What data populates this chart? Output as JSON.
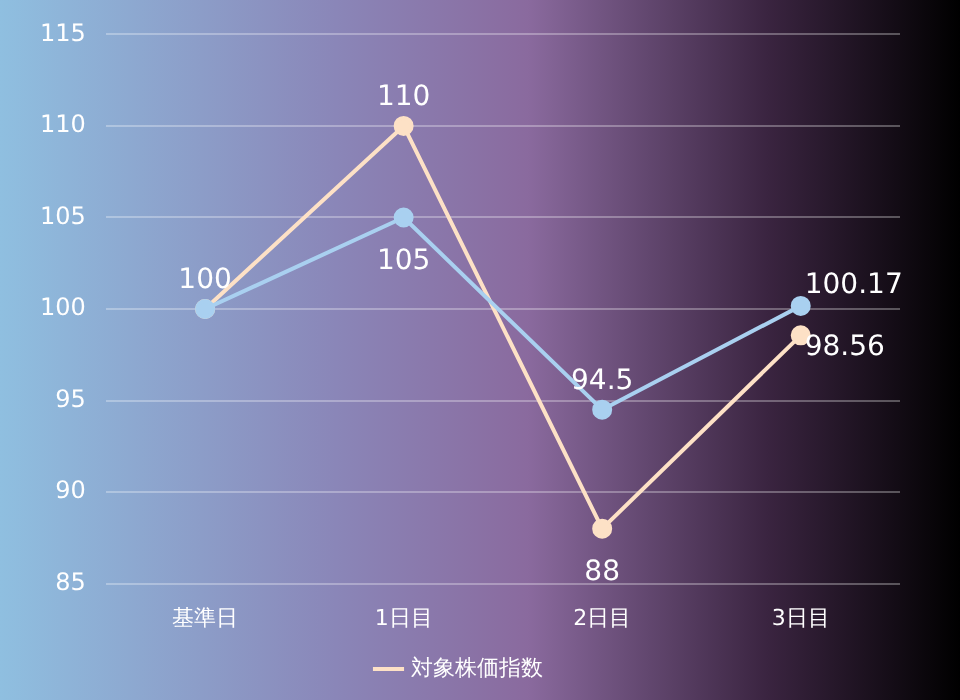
{
  "chart_data": {
    "type": "line",
    "categories": [
      "基準日",
      "1日目",
      "2日目",
      "3日目"
    ],
    "series": [
      {
        "color": "#a9d0f0",
        "values": [
          100,
          105,
          94.5,
          100.17
        ],
        "value_labels": [
          null,
          "105",
          "94.5",
          "100.17"
        ]
      },
      {
        "name": "対象株価指数",
        "color": "#fde1c6",
        "values": [
          100,
          110,
          88,
          98.56
        ],
        "value_labels": [
          "100",
          "110",
          "88",
          "98.56"
        ]
      }
    ],
    "ylim": [
      85,
      115
    ],
    "yticks": [
      85,
      90,
      95,
      100,
      105,
      110,
      115
    ],
    "grid": "y",
    "legend": "bottom",
    "marker": "circle",
    "line_style": "solid"
  }
}
